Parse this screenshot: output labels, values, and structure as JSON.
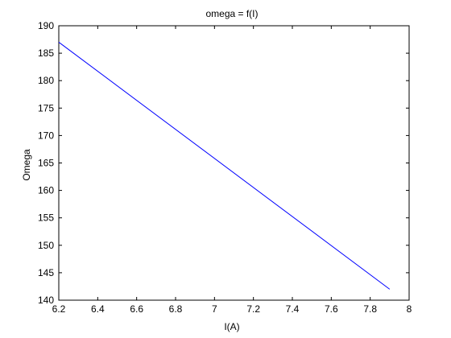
{
  "chart_data": {
    "type": "line",
    "title": "omega = f(I)",
    "xlabel": "I(A)",
    "ylabel": "Omega",
    "xlim": [
      6.2,
      8.0
    ],
    "ylim": [
      140,
      190
    ],
    "xticks": [
      6.2,
      6.4,
      6.6,
      6.8,
      7.0,
      7.2,
      7.4,
      7.6,
      7.8,
      8.0
    ],
    "xtick_labels": [
      "6.2",
      "6.4",
      "6.6",
      "6.8",
      "7",
      "7.2",
      "7.4",
      "7.6",
      "7.8",
      "8"
    ],
    "yticks": [
      140,
      145,
      150,
      155,
      160,
      165,
      170,
      175,
      180,
      185,
      190
    ],
    "ytick_labels": [
      "140",
      "145",
      "150",
      "155",
      "160",
      "165",
      "170",
      "175",
      "180",
      "185",
      "190"
    ],
    "grid": false,
    "series": [
      {
        "color": "#0000ff",
        "x": [
          6.2,
          7.9
        ],
        "y": [
          187,
          142
        ]
      }
    ]
  }
}
